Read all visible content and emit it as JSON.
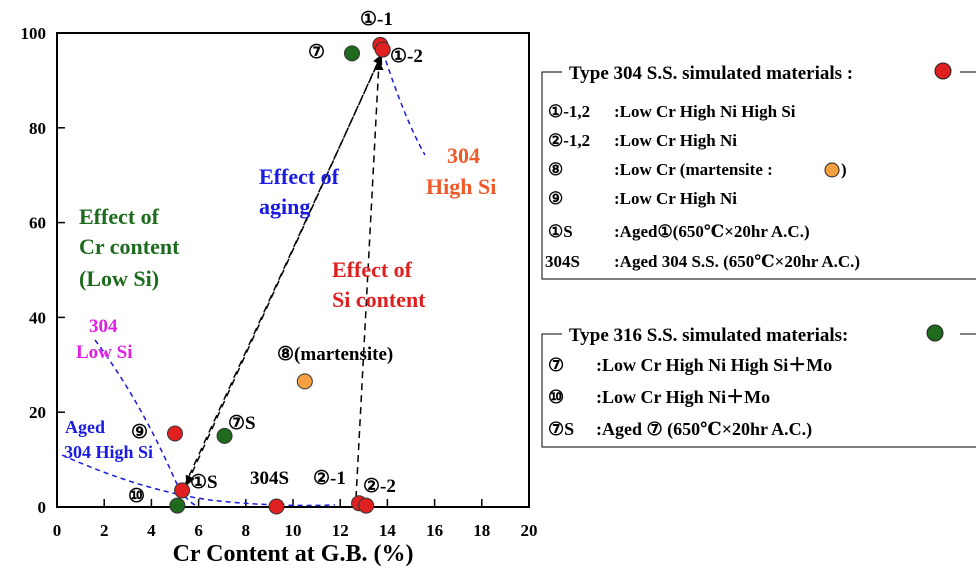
{
  "chart_data": {
    "type": "scatter",
    "xlabel": "Cr Content at G.B. (%)",
    "xlim": [
      0,
      20
    ],
    "ylim": [
      0,
      100
    ],
    "xticks": [
      "0",
      "2",
      "4",
      "6",
      "8",
      "10",
      "12",
      "14",
      "16",
      "18",
      "20"
    ],
    "yticks": [
      "0",
      "20",
      "40",
      "60",
      "80",
      "100"
    ],
    "points": [
      {
        "label": "①-1",
        "x": 13.7,
        "y": 97.5,
        "color": "#e02020"
      },
      {
        "label": "①-2",
        "x": 13.8,
        "y": 96.5,
        "color": "#e02020"
      },
      {
        "label": "⑦",
        "x": 12.5,
        "y": 95.7,
        "color": "#1e6b1e"
      },
      {
        "label": "⑧(martensite)",
        "x": 10.5,
        "y": 26.5,
        "color": "#f5a040"
      },
      {
        "label": "⑨",
        "x": 5.0,
        "y": 15.5,
        "color": "#e02020"
      },
      {
        "label": "⑦S",
        "x": 7.1,
        "y": 15.0,
        "color": "#1e6b1e"
      },
      {
        "label": "①S",
        "x": 5.3,
        "y": 3.5,
        "color": "#e02020"
      },
      {
        "label": "⑩",
        "x": 5.1,
        "y": 0.3,
        "color": "#1e6b1e"
      },
      {
        "label": "304S",
        "x": 9.3,
        "y": 0.1,
        "color": "#e02020"
      },
      {
        "label": "②-1",
        "x": 12.8,
        "y": 0.8,
        "color": "#e02020"
      },
      {
        "label": "②-2",
        "x": 13.1,
        "y": 0.3,
        "color": "#e02020"
      }
    ],
    "annotations": [
      {
        "text": "Effect of",
        "color": "#1e6b1e"
      },
      {
        "text": "Cr content",
        "color": "#1e6b1e"
      },
      {
        "text": "(Low Si)",
        "color": "#1e6b1e"
      },
      {
        "text": "Effect of",
        "color": "#1a1ae0"
      },
      {
        "text": "aging",
        "color": "#1a1ae0"
      },
      {
        "text": "Effect of",
        "color": "#e02020"
      },
      {
        "text": "Si content",
        "color": "#e02020"
      },
      {
        "text": "304",
        "color": "#f05a28"
      },
      {
        "text": "High Si",
        "color": "#f05a28"
      },
      {
        "text": "304",
        "color": "#e020e0"
      },
      {
        "text": "Low Si",
        "color": "#e020e0"
      },
      {
        "text": "Aged",
        "color": "#1a1ae0"
      },
      {
        "text": "304 High Si",
        "color": "#1a1ae0"
      }
    ]
  },
  "legend_304": {
    "title": "Type 304 S.S. simulated materials :",
    "marker_color": "#e02020",
    "rows": [
      {
        "code": "①-1,2",
        "desc": ":Low Cr High Ni High Si"
      },
      {
        "code": "②-1,2",
        "desc": ":Low Cr High Ni"
      },
      {
        "code": "⑧",
        "desc": ":Low Cr (martensite :",
        "tail": ")",
        "marker_color": "#f5a040"
      },
      {
        "code": "⑨",
        "desc": ":Low Cr High Ni"
      },
      {
        "code": "①S",
        "desc": ":Aged①(650℃×20hr A.C.)"
      },
      {
        "code": "304S",
        "desc": ":Aged 304 S.S. (650℃×20hr A.C.)"
      }
    ]
  },
  "legend_316": {
    "title": "Type 316 S.S. simulated materials:",
    "marker_color": "#1e6b1e",
    "rows": [
      {
        "code": "⑦",
        "desc": ":Low Cr High Ni High Si＋Mo"
      },
      {
        "code": "⑩",
        "desc": ":Low Cr High Ni＋Mo"
      },
      {
        "code": "⑦S",
        "desc": ":Aged ⑦ (650℃×20hr A.C.)"
      }
    ]
  }
}
